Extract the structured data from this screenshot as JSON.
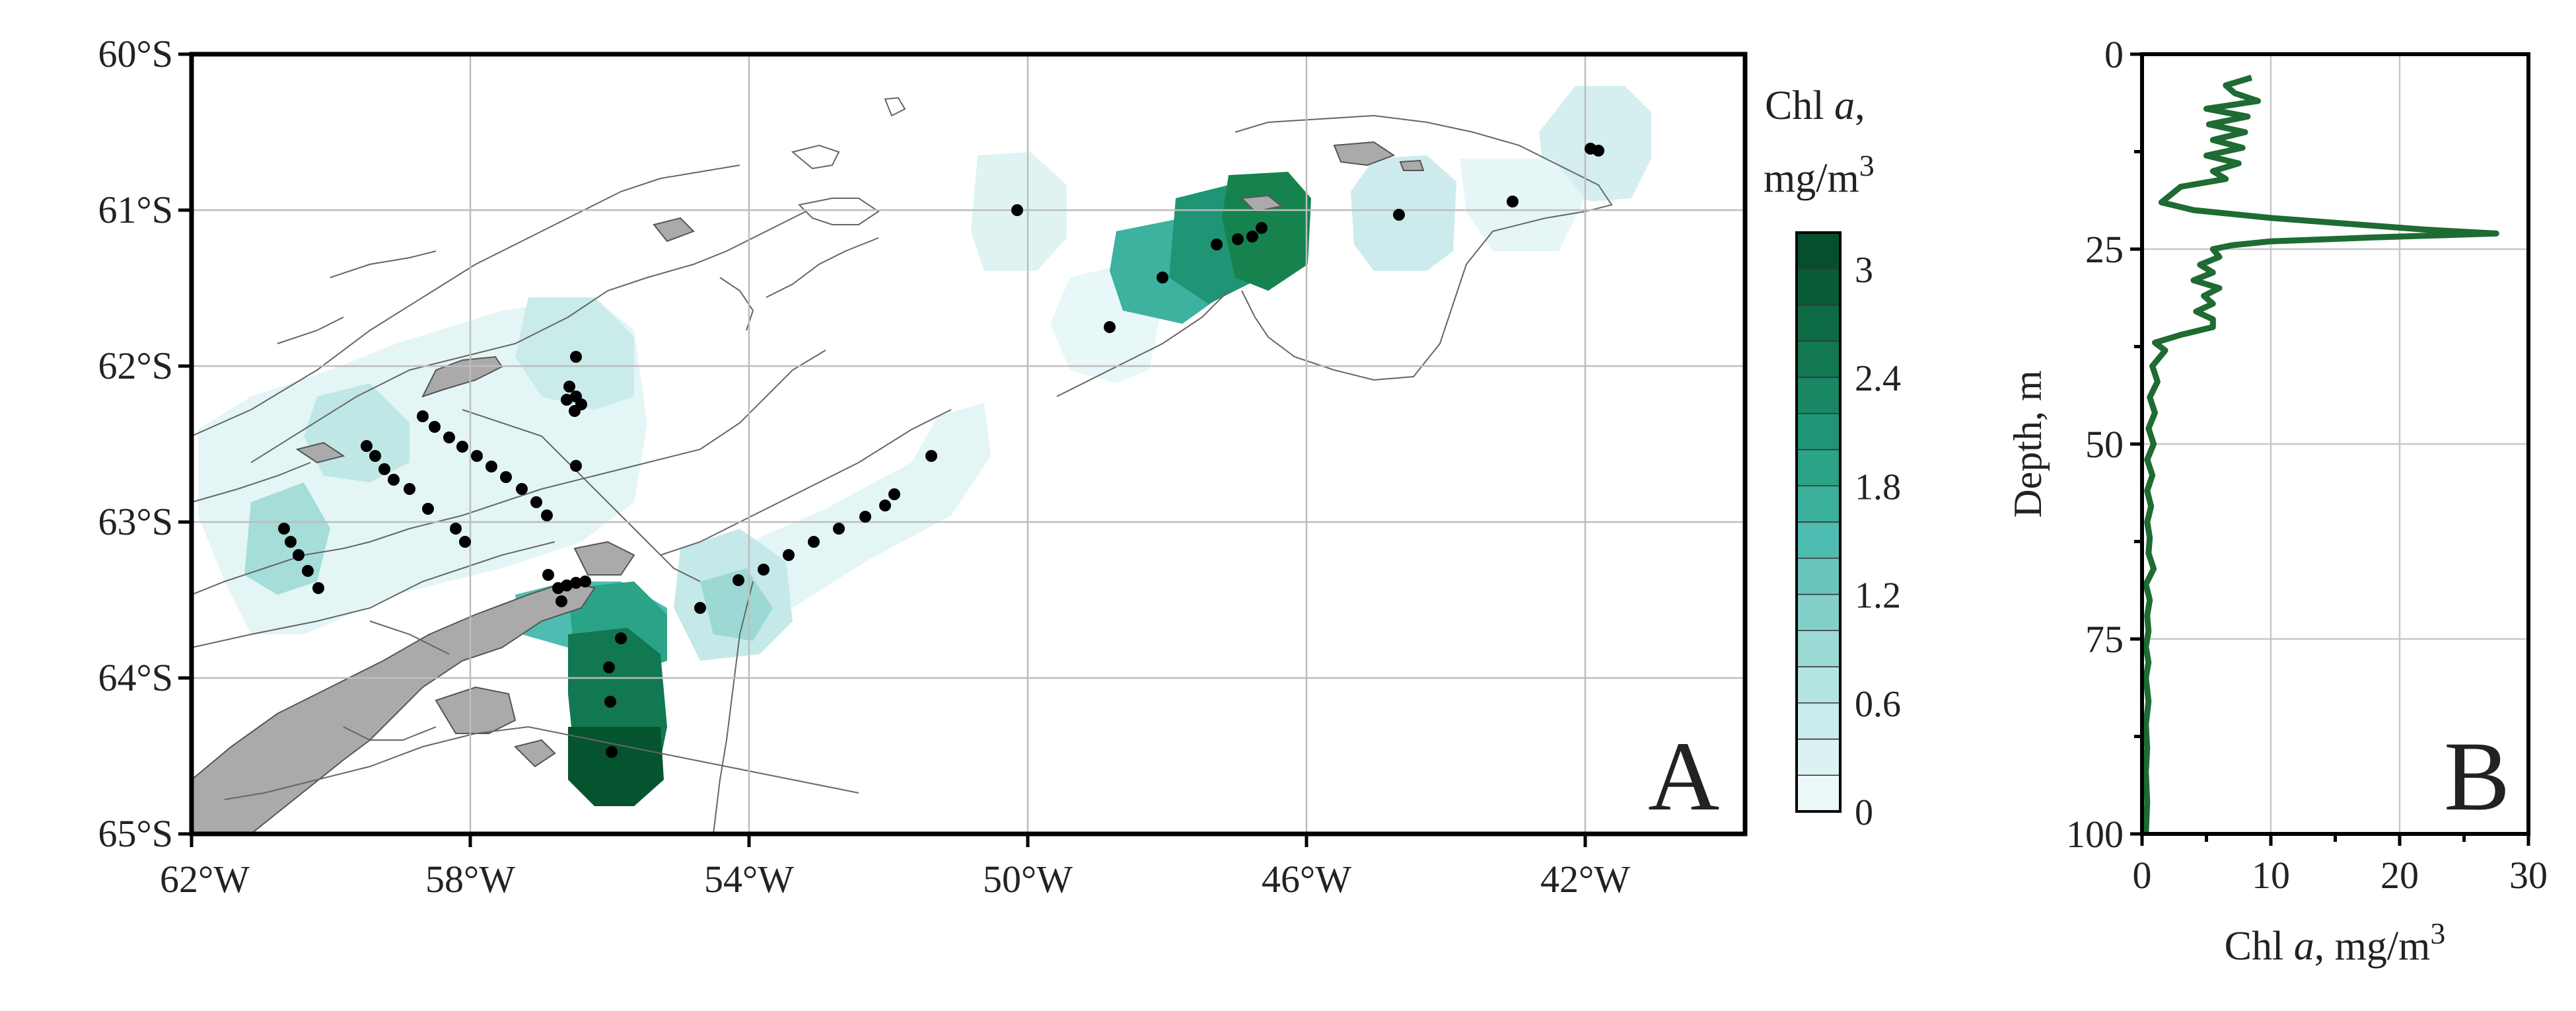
{
  "panel_a": {
    "letter": "A",
    "lat_labels": [
      "60°S",
      "61°S",
      "62°S",
      "63°S",
      "64°S",
      "65°S"
    ],
    "lon_labels": [
      "62°W",
      "58°W",
      "54°W",
      "50°W",
      "46°W",
      "42°W"
    ]
  },
  "colorbar": {
    "title_prefix": "Chl ",
    "title_italic": "a",
    "title_suffix": ",",
    "units": "mg/m",
    "units_sup": "3",
    "tick_labels": [
      "3",
      "2.4",
      "1.8",
      "1.2",
      "0.6",
      "0"
    ],
    "range": [
      0,
      3.2
    ],
    "colors": [
      "#ecf8f8",
      "#dcf2f2",
      "#c9ecec",
      "#b4e4e2",
      "#9cdad6",
      "#83d0cb",
      "#69c6bf",
      "#4fbcb2",
      "#3ab09b",
      "#2aa387",
      "#1f9575",
      "#198763",
      "#127852",
      "#0c6a44",
      "#085c38",
      "#054f2e"
    ]
  },
  "chart_data": {
    "type": "line",
    "title": "",
    "panel_letter": "B",
    "xlabel_prefix": "Chl ",
    "xlabel_italic": "a",
    "xlabel_suffix": ", mg/m",
    "xlabel_sup": "3",
    "ylabel": "Depth, m",
    "xlim": [
      0,
      30
    ],
    "ylim": [
      100,
      0
    ],
    "x_ticks": [
      "0",
      "10",
      "20",
      "30"
    ],
    "y_ticks": [
      "0",
      "25",
      "50",
      "75",
      "100"
    ],
    "grid": true,
    "series_color": "#1e6b33",
    "series": [
      {
        "x": [
          8.5,
          6.5,
          7.2,
          9.0,
          5.0,
          8.2,
          5.2,
          8.0,
          5.5,
          7.8,
          5.0,
          7.5,
          5.5,
          6.5,
          3.0,
          1.5,
          4.0,
          10.0,
          22.0,
          27.5,
          18.0,
          10.0,
          7.0,
          5.5,
          6.0,
          4.5,
          5.5,
          4.0,
          6.0,
          4.8,
          5.5,
          4.2,
          5.5,
          5.5,
          3.0,
          1.0,
          1.8,
          0.8,
          1.2,
          0.6,
          1.0,
          0.5,
          0.9,
          0.4,
          0.8,
          0.4,
          0.7,
          0.4,
          0.6,
          0.5,
          0.9,
          0.3,
          0.6,
          0.4,
          0.5,
          0.3,
          0.5,
          0.3,
          0.5,
          0.3,
          0.4,
          0.3,
          0.4,
          0.3
        ],
        "y": [
          3,
          4,
          5,
          6,
          7,
          8,
          9,
          10,
          11,
          12,
          13,
          14,
          15,
          16,
          17,
          19,
          20,
          21,
          22.5,
          23,
          23.5,
          24,
          24.5,
          25,
          26,
          27,
          28,
          29,
          30,
          31,
          32,
          33,
          34,
          35,
          36,
          37,
          38,
          40,
          42,
          44,
          46,
          48,
          50,
          52,
          54,
          56,
          58,
          60,
          62,
          64,
          66,
          68,
          70,
          72,
          74,
          76,
          78,
          80,
          83,
          86,
          89,
          92,
          96,
          100
        ]
      }
    ]
  }
}
